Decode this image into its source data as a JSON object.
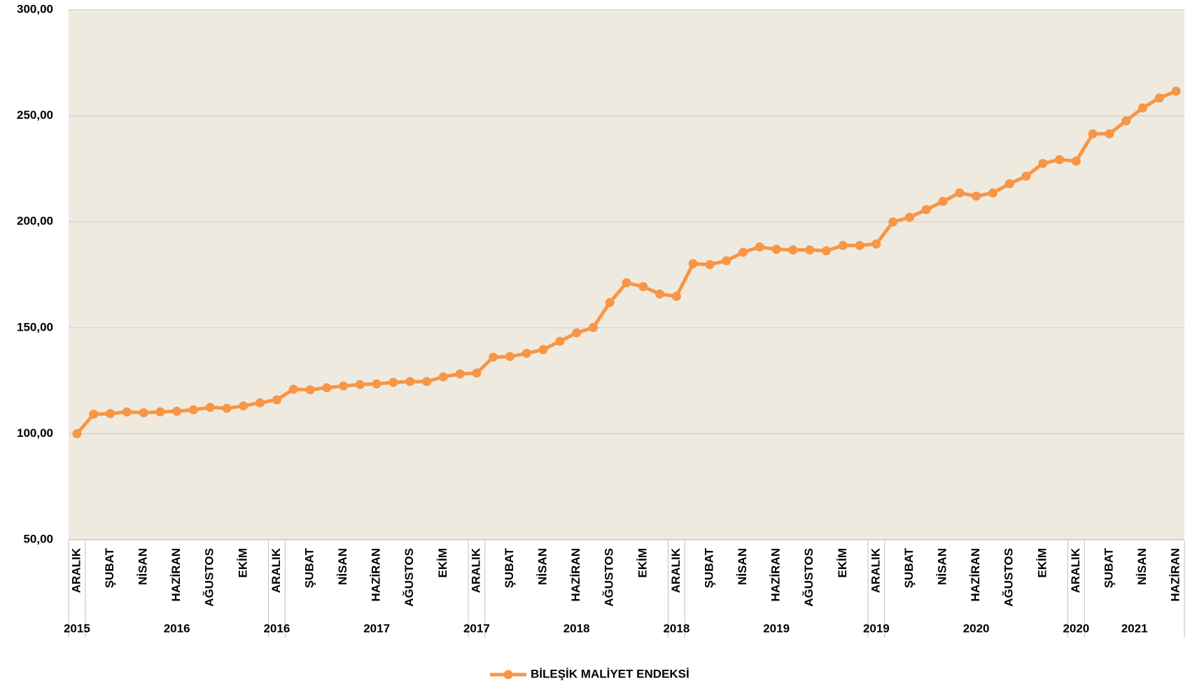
{
  "chart_data": {
    "type": "line",
    "categories": [
      "ARALIK",
      null,
      "ŞUBAT",
      null,
      "NİSAN",
      null,
      "HAZİRAN",
      null,
      "AĞUSTOS",
      null,
      "EKİM",
      null,
      "ARALIK",
      null,
      "ŞUBAT",
      null,
      "NİSAN",
      null,
      "HAZİRAN",
      null,
      "AĞUSTOS",
      null,
      "EKİM",
      null,
      "ARALIK",
      null,
      "ŞUBAT",
      null,
      "NİSAN",
      null,
      "HAZİRAN",
      null,
      "AĞUSTOS",
      null,
      "EKİM",
      null,
      "ARALIK",
      null,
      "ŞUBAT",
      null,
      "NİSAN",
      null,
      "HAZİRAN",
      null,
      "AĞUSTOS",
      null,
      "EKİM",
      null,
      "ARALIK",
      null,
      "ŞUBAT",
      null,
      "NİSAN",
      null,
      "HAZİRAN",
      null,
      "AĞUSTOS",
      null,
      "EKİM",
      null,
      "ARALIK",
      null,
      "ŞUBAT",
      null,
      "NİSAN",
      null,
      "HAZİRAN"
    ],
    "year_groups": [
      {
        "label": "2015",
        "count": 1
      },
      {
        "label": "2016",
        "count": 11
      },
      {
        "label": "2016",
        "count": 1
      },
      {
        "label": "2017",
        "count": 11
      },
      {
        "label": "2017",
        "count": 1
      },
      {
        "label": "2018",
        "count": 11
      },
      {
        "label": "2018",
        "count": 1
      },
      {
        "label": "2019",
        "count": 11
      },
      {
        "label": "2019",
        "count": 1
      },
      {
        "label": "2020",
        "count": 11
      },
      {
        "label": "2020",
        "count": 1
      },
      {
        "label": "2021",
        "count": 6
      }
    ],
    "series": [
      {
        "name": "BİLEŞİK MALİYET ENDEKSİ",
        "color": "#f79646",
        "values": [
          100,
          109.2,
          109.5,
          110.3,
          109.9,
          110.3,
          110.6,
          111.3,
          112.4,
          112.0,
          113.1,
          114.6,
          116.0,
          121.0,
          120.7,
          121.7,
          122.5,
          123.2,
          123.5,
          124.2,
          124.6,
          124.6,
          126.8,
          128.2,
          128.6,
          136.1,
          136.4,
          137.9,
          139.7,
          143.6,
          147.6,
          150.1,
          161.9,
          171.2,
          169.4,
          165.9,
          164.8,
          180.2,
          179.8,
          181.6,
          185.6,
          188.1,
          187.0,
          186.7,
          186.7,
          186.3,
          188.8,
          188.8,
          189.5,
          199.9,
          202.1,
          205.7,
          209.6,
          213.6,
          212.1,
          213.6,
          217.9,
          221.5,
          227.5,
          229.3,
          228.6,
          241.5,
          241.5,
          247.6,
          253.7,
          258.4,
          261.6
        ]
      }
    ],
    "ylim": [
      50,
      300
    ],
    "yticks": [
      {
        "value": 50,
        "label": "50,00"
      },
      {
        "value": 100,
        "label": "100,00"
      },
      {
        "value": 150,
        "label": "150,00"
      },
      {
        "value": 200,
        "label": "200,00"
      },
      {
        "value": 250,
        "label": "250,00"
      },
      {
        "value": 300,
        "label": "300,00"
      }
    ],
    "grid": true,
    "legend": "bottom",
    "plot_background": "#eeeae0"
  }
}
